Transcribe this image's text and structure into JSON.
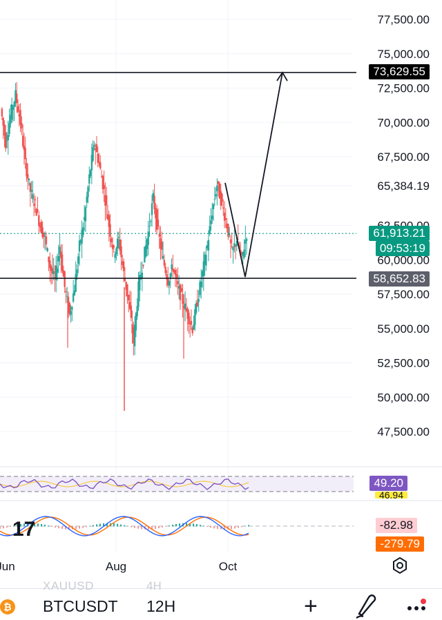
{
  "chart_data": {
    "type": "candlestick",
    "price_axis": {
      "ticks": [
        "77,500.00",
        "75,000.00",
        "72,500.00",
        "70,000.00",
        "67,500.00",
        "65,384.19",
        "62,500.00",
        "60,000.00",
        "57,500.00",
        "55,000.00",
        "52,500.00",
        "50,000.00",
        "47,500.00"
      ],
      "range": [
        45800,
        78500
      ]
    },
    "time_axis": {
      "labels": [
        "Jun",
        "Aug",
        "Oct"
      ]
    },
    "price_tags": {
      "target": "73,629.55",
      "current_price": "61,913.21",
      "countdown": "09:53:19",
      "support": "58,652.83"
    },
    "levels": {
      "target": 73629.55,
      "support": 58652.83,
      "current": 61913.21
    },
    "candles_note": "approximate closing path, 12H candles",
    "close_path": [
      71000,
      68500,
      70500,
      72000,
      70000,
      67000,
      65000,
      64000,
      62500,
      61500,
      59500,
      58500,
      61000,
      58000,
      56000,
      58000,
      61000,
      63000,
      66000,
      68500,
      67000,
      65000,
      62500,
      60500,
      61500,
      59000,
      57000,
      54000,
      58000,
      60000,
      62000,
      64500,
      62000,
      60000,
      58500,
      59500,
      58000,
      57000,
      56000,
      55000,
      57000,
      59000,
      61000,
      63500,
      65500,
      64000,
      62500,
      60500,
      61500,
      60000,
      61913
    ],
    "rsi": {
      "value": "49.20",
      "secondary": "46.94"
    },
    "macd": {
      "value": "-82.98",
      "histogram": "-279.79"
    },
    "colors": {
      "up": "#26a69a",
      "down": "#ef5350",
      "target_tag": "#000000",
      "current_tag": "#089981",
      "support_tag": "#5d606b",
      "rsi_tag": "#7e57c2",
      "macd_tag": "#ffcdd2",
      "signal_tag": "#ff6d00"
    }
  },
  "toolbar": {
    "symbol": "BTCUSDT",
    "interval": "12H",
    "ghost_symbol": "XAUUSD",
    "ghost_interval": "4H",
    "coin_glyph": "₿",
    "plus_glyph": "+"
  }
}
